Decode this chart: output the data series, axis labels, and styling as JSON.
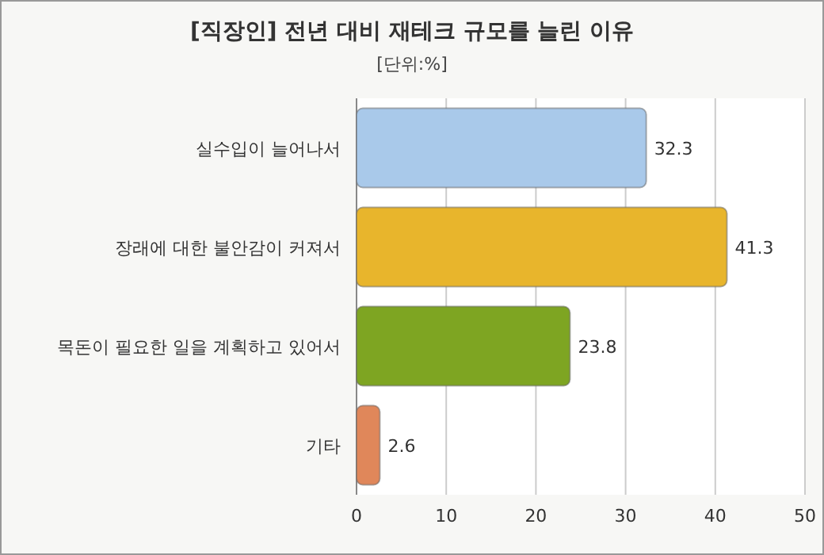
{
  "chart_data": {
    "type": "bar",
    "orientation": "horizontal",
    "title": "[직장인] 전년 대비 재테크 규모를 늘린 이유",
    "subtitle": "[단위:%]",
    "categories": [
      "실수입이 늘어나서",
      "장래에 대한 불안감이 커져서",
      "목돈이 필요한 일을 계획하고 있어서",
      "기타"
    ],
    "values": [
      32.3,
      41.3,
      23.8,
      2.6
    ],
    "colors": [
      "#a9c9ea",
      "#e8b52c",
      "#7ea522",
      "#e0875a"
    ],
    "xlim": [
      0,
      50
    ],
    "xticks": [
      0,
      10,
      20,
      30,
      40,
      50
    ],
    "grid": "x",
    "data_labels": true
  }
}
